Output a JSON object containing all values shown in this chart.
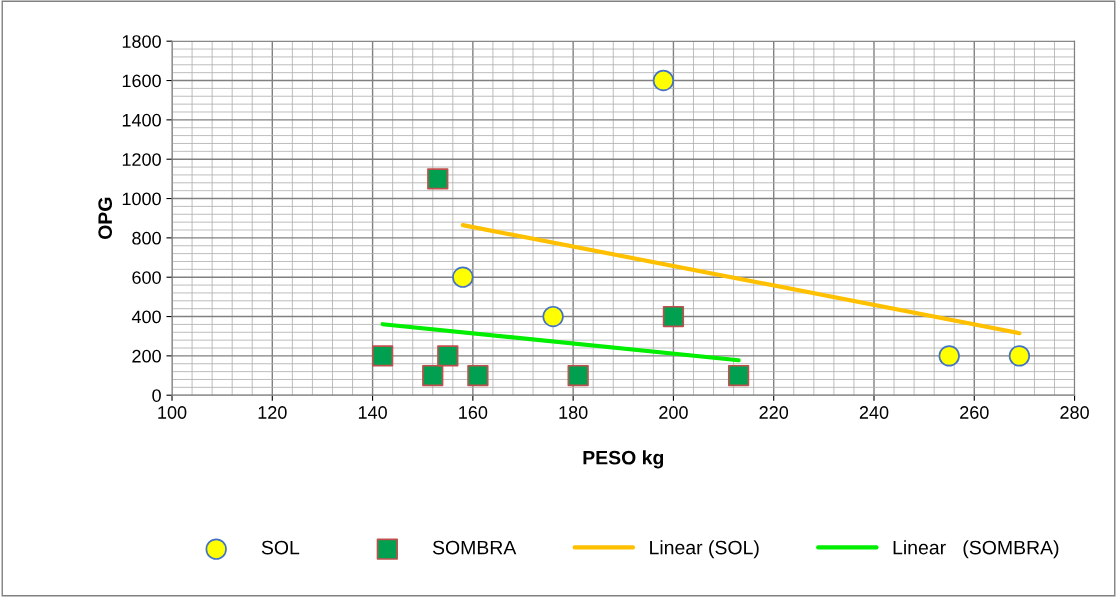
{
  "chart_data": {
    "type": "scatter",
    "xlabel": "PESO kg",
    "ylabel": "OPG",
    "xlim": [
      100,
      280
    ],
    "xticks": [
      100,
      120,
      140,
      160,
      180,
      200,
      220,
      240,
      260,
      280
    ],
    "ylim": [
      0,
      1800
    ],
    "yticks": [
      0,
      200,
      400,
      600,
      800,
      1000,
      1200,
      1400,
      1600,
      1800
    ],
    "grid": true,
    "legend": "bottom",
    "series": [
      {
        "name": "SOL",
        "marker": "circle",
        "color": "#ffff00",
        "x": [
          158,
          176,
          198,
          255,
          269
        ],
        "values": [
          600,
          400,
          1600,
          200,
          200
        ]
      },
      {
        "name": "SOMBRA",
        "marker": "square",
        "color": "#00a050",
        "x": [
          142,
          153,
          152,
          155,
          161,
          181,
          200,
          213
        ],
        "values": [
          200,
          1100,
          100,
          200,
          100,
          100,
          400,
          100
        ]
      },
      {
        "name": "Linear (SOL)",
        "type": "line",
        "color": "#ffc000",
        "x": [
          158,
          269
        ],
        "values": [
          865,
          315
        ]
      },
      {
        "name": "Linear   (SOMBRA)",
        "type": "line",
        "color": "#00ee00",
        "x": [
          142,
          213
        ],
        "values": [
          361,
          178
        ]
      }
    ]
  }
}
